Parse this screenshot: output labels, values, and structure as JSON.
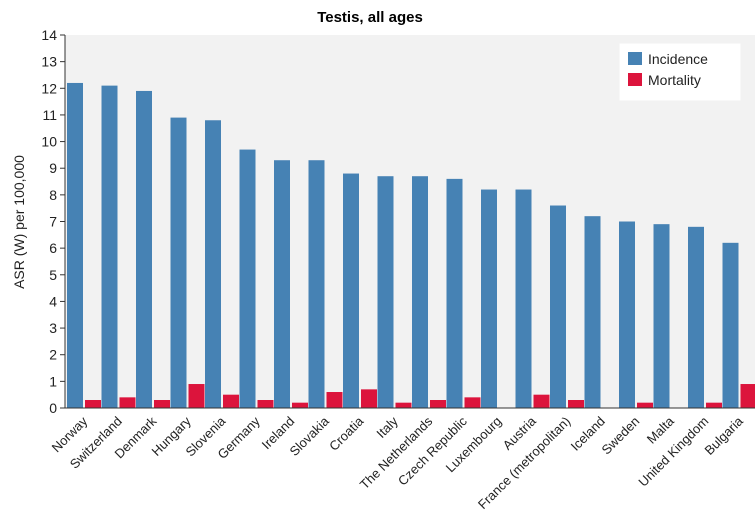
{
  "chart_data": {
    "type": "bar",
    "title": "Testis, all ages",
    "xlabel": "",
    "ylabel": "ASR (W) per 100,000",
    "ylim": [
      0,
      14
    ],
    "yticks": [
      0,
      1,
      2,
      3,
      4,
      5,
      6,
      7,
      8,
      9,
      10,
      11,
      12,
      13,
      14
    ],
    "grid": false,
    "legend_position": "top-right",
    "categories": [
      "Norway",
      "Switzerland",
      "Denmark",
      "Hungary",
      "Slovenia",
      "Germany",
      "Ireland",
      "Slovakia",
      "Croatia",
      "Italy",
      "The Netherlands",
      "Czech Republic",
      "Luxembourg",
      "Austria",
      "France (metropolitan)",
      "Iceland",
      "Sweden",
      "Malta",
      "United Kingdom",
      "Bulgaria"
    ],
    "series": [
      {
        "name": "Incidence",
        "color": "#4682b4",
        "values": [
          12.2,
          12.1,
          11.9,
          10.9,
          10.8,
          9.7,
          9.3,
          9.3,
          8.8,
          8.7,
          8.7,
          8.6,
          8.2,
          8.2,
          7.6,
          7.2,
          7.0,
          6.9,
          6.8,
          6.2
        ]
      },
      {
        "name": "Mortality",
        "color": "#dc143c",
        "values": [
          0.3,
          0.4,
          0.3,
          0.9,
          0.5,
          0.3,
          0.2,
          0.6,
          0.7,
          0.2,
          0.3,
          0.4,
          0.0,
          0.5,
          0.3,
          0.0,
          0.2,
          0.0,
          0.2,
          0.9
        ]
      }
    ],
    "plot_background": "#f2f2f2"
  }
}
